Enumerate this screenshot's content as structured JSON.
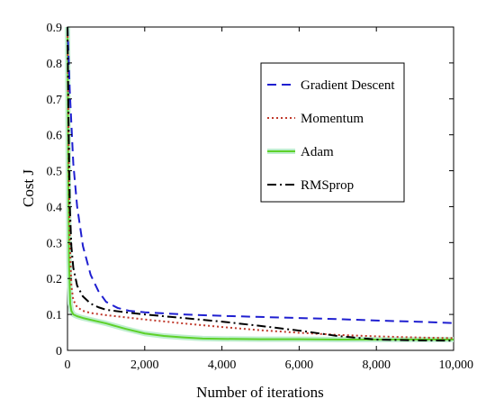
{
  "chart_data": {
    "type": "line",
    "title": "",
    "xlabel": "Number of iterations",
    "ylabel": "Cost J",
    "xlim": [
      0,
      10000
    ],
    "ylim": [
      0,
      0.9
    ],
    "xticks": [
      0,
      2000,
      4000,
      6000,
      8000,
      10000
    ],
    "xtick_labels": [
      "0",
      "2,000",
      "4,000",
      "6,000",
      "8,000",
      "10,000"
    ],
    "yticks": [
      0,
      0.1,
      0.2,
      0.3,
      0.4,
      0.5,
      0.6,
      0.7,
      0.8,
      0.9
    ],
    "ytick_labels": [
      "0",
      "0.1",
      "0.2",
      "0.3",
      "0.4",
      "0.5",
      "0.6",
      "0.7",
      "0.8",
      "0.9"
    ],
    "grid": false,
    "legend_position": "top-right",
    "series": [
      {
        "name": "Gradient Descent",
        "color": "#1f1fd0",
        "dash": "dashed",
        "x": [
          0,
          60,
          150,
          250,
          400,
          600,
          800,
          1000,
          1300,
          1600,
          2000,
          3000,
          4000,
          5000,
          6000,
          7000,
          8000,
          9000,
          10000
        ],
        "y": [
          0.9,
          0.72,
          0.52,
          0.4,
          0.29,
          0.21,
          0.165,
          0.135,
          0.118,
          0.11,
          0.106,
          0.1,
          0.096,
          0.093,
          0.09,
          0.087,
          0.083,
          0.08,
          0.076
        ]
      },
      {
        "name": "Momentum",
        "color": "#c0392b",
        "dash": "dotted",
        "x": [
          0,
          30,
          60,
          100,
          150,
          250,
          400,
          600,
          1000,
          1500,
          2000,
          3000,
          4000,
          5000,
          6000,
          7000,
          8000,
          9000,
          10000
        ],
        "y": [
          0.9,
          0.55,
          0.3,
          0.18,
          0.14,
          0.12,
          0.11,
          0.104,
          0.098,
          0.092,
          0.086,
          0.075,
          0.065,
          0.056,
          0.049,
          0.043,
          0.039,
          0.036,
          0.034
        ]
      },
      {
        "name": "Adam",
        "color": "#5ed12a",
        "dash": "solid",
        "x": [
          0,
          20,
          40,
          70,
          100,
          150,
          250,
          400,
          600,
          1000,
          1500,
          2000,
          2500,
          3000,
          3500,
          4000,
          5000,
          6000,
          7000,
          8000,
          9000,
          10000
        ],
        "y": [
          0.9,
          0.5,
          0.25,
          0.13,
          0.11,
          0.1,
          0.095,
          0.09,
          0.085,
          0.075,
          0.06,
          0.047,
          0.04,
          0.036,
          0.033,
          0.032,
          0.031,
          0.031,
          0.03,
          0.03,
          0.03,
          0.03
        ]
      },
      {
        "name": "RMSprop",
        "color": "#000000",
        "dash": "dashdot",
        "x": [
          0,
          30,
          60,
          100,
          150,
          250,
          400,
          600,
          800,
          1000,
          1500,
          2000,
          3000,
          4000,
          5000,
          6000,
          7000,
          8000,
          9000,
          10000
        ],
        "y": [
          0.9,
          0.62,
          0.4,
          0.29,
          0.23,
          0.18,
          0.15,
          0.13,
          0.12,
          0.113,
          0.106,
          0.1,
          0.09,
          0.08,
          0.068,
          0.055,
          0.04,
          0.03,
          0.028,
          0.027
        ]
      }
    ]
  }
}
